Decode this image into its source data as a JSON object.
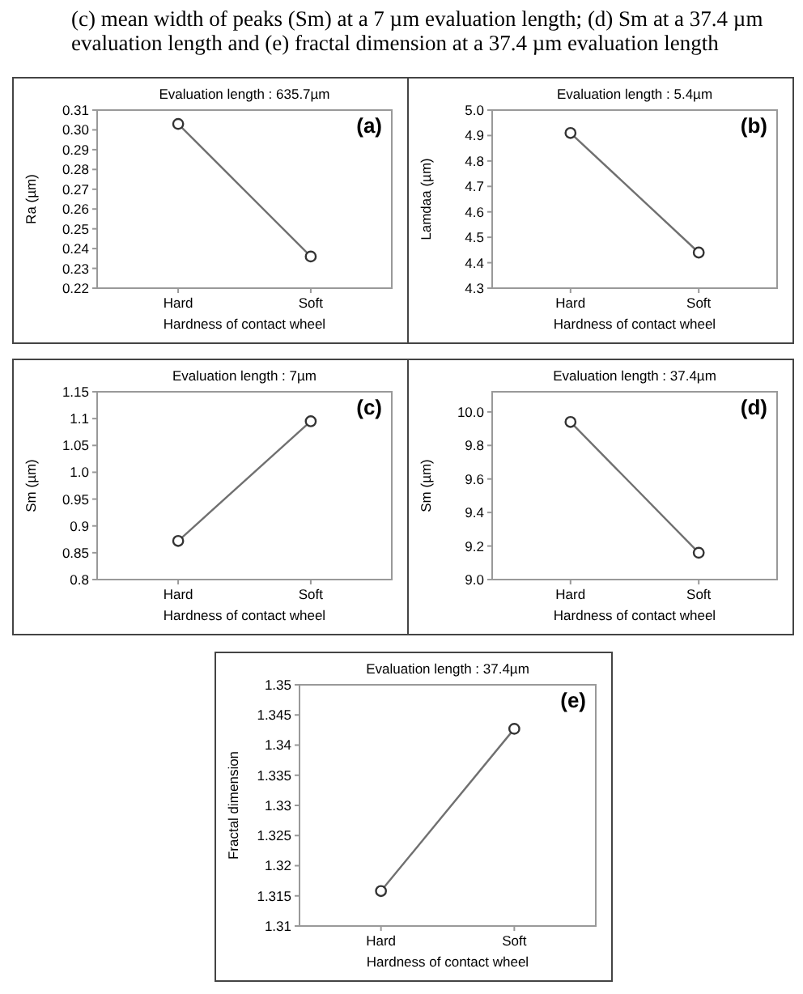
{
  "chart_data": [
    {
      "type": "line",
      "title": "Evaluation length : 635.7µm",
      "xlabel": "Hardness of contact wheel",
      "ylabel": "Ra (µm)",
      "annotations": [
        "(c) mean width of peaks (Sm) at a 7 µm evaluation length; (d) Sm at a 37.4 µm evaluation length and (e) fractal dimension at a 37.4 µm evaluation length",
        "(a)"
      ],
      "categories": [
        "Hard",
        "Soft"
      ],
      "series": [
        {
          "color": "#707070",
          "values": [
            0.303,
            0.236
          ]
        }
      ],
      "ylim": [
        0.22,
        0.31
      ],
      "yticks": [
        {
          "value": 0.22,
          "label": "0.22"
        },
        {
          "value": 0.23,
          "label": "0.23"
        },
        {
          "value": 0.24,
          "label": "0.24"
        },
        {
          "value": 0.25,
          "label": "0.25"
        },
        {
          "value": 0.26,
          "label": "0.26"
        },
        {
          "value": 0.27,
          "label": "0.27"
        },
        {
          "value": 0.28,
          "label": "0.28"
        },
        {
          "value": 0.29,
          "label": "0.29"
        },
        {
          "value": 0.3,
          "label": "0.30"
        },
        {
          "value": 0.31,
          "label": "0.31"
        }
      ],
      "marker": "circle",
      "grid": false
    },
    {
      "type": "line",
      "title": "Evaluation length : 5.4µm",
      "xlabel": "Hardness of contact wheel",
      "ylabel": "Lamdaa (µm)",
      "annotations": [
        "(b)"
      ],
      "categories": [
        "Hard",
        "Soft"
      ],
      "series": [
        {
          "color": "#707070",
          "values": [
            4.91,
            4.44
          ]
        }
      ],
      "ylim": [
        4.3,
        5.0
      ],
      "yticks": [
        4.3,
        4.4,
        4.5,
        4.6,
        4.7,
        4.8,
        4.9,
        {
          "value": 5,
          "label": "5.0"
        }
      ],
      "marker": "circle",
      "grid": false
    },
    {
      "type": "line",
      "title": "Evaluation length : 7µm",
      "xlabel": "Hardness of contact wheel",
      "ylabel": "Sm (µm)",
      "annotations": [
        "(c)"
      ],
      "categories": [
        "Hard",
        "Soft"
      ],
      "series": [
        {
          "color": "#707070",
          "values": [
            0.872,
            1.095
          ]
        }
      ],
      "ylim": [
        0.8,
        1.15
      ],
      "yticks": [
        0.8,
        0.85,
        0.9,
        0.95,
        {
          "value": 1,
          "label": "1.0"
        },
        1.05,
        1.1,
        1.15
      ],
      "marker": "circle",
      "grid": false
    },
    {
      "type": "line",
      "title": "Evaluation length : 37.4µm",
      "xlabel": "Hardness of contact wheel",
      "ylabel": "Sm (µm)",
      "annotations": [
        "(d)"
      ],
      "categories": [
        "Hard",
        "Soft"
      ],
      "series": [
        {
          "color": "#707070",
          "values": [
            9.94,
            9.16
          ]
        }
      ],
      "ylim": [
        9.0,
        10.12
      ],
      "yticks": [
        {
          "value": 9,
          "label": "9.0"
        },
        9.2,
        9.4,
        9.6,
        9.8,
        {
          "value": 10,
          "label": "10.0"
        }
      ],
      "marker": "circle",
      "grid": false
    },
    {
      "type": "line",
      "title": "Evaluation length : 37.4µm",
      "xlabel": "Hardness of contact wheel",
      "ylabel": "Fractal dimension",
      "annotations": [
        "(e)"
      ],
      "categories": [
        "Hard",
        "Soft"
      ],
      "series": [
        {
          "color": "#707070",
          "values": [
            1.3158,
            1.3427
          ]
        }
      ],
      "ylim": [
        1.31,
        1.35
      ],
      "yticks": [
        1.31,
        1.315,
        1.32,
        1.325,
        1.33,
        1.335,
        1.34,
        1.345,
        1.35
      ],
      "marker": "circle",
      "grid": false
    }
  ]
}
